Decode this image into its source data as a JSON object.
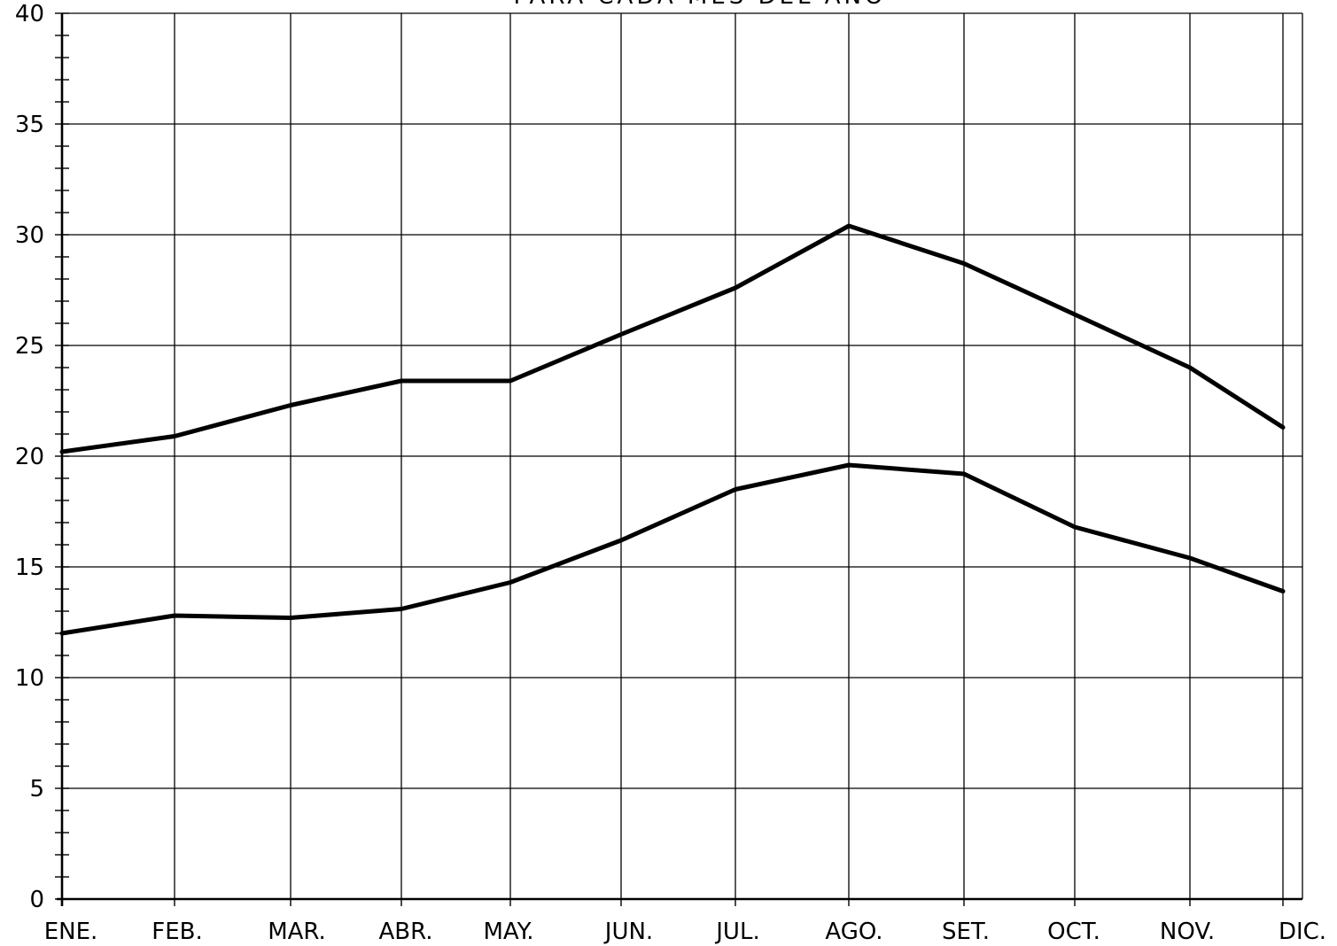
{
  "chart_data": {
    "type": "line",
    "title": "PARA CADA MES DEL AÑO",
    "xlabel": "",
    "ylabel": "",
    "categories": [
      "ENE.",
      "FEB.",
      "MAR.",
      "ABR.",
      "MAY.",
      "JUN.",
      "JUL.",
      "AGO.",
      "SET.",
      "OCT.",
      "NOV.",
      "DIC."
    ],
    "ylim": [
      0,
      40
    ],
    "yticks": [
      "0",
      "5",
      "10",
      "15",
      "20",
      "25",
      "30",
      "35",
      "40"
    ],
    "grid": true,
    "series": [
      {
        "values": [
          20.2,
          20.9,
          22.3,
          23.4,
          23.4,
          25.5,
          27.6,
          30.4,
          28.7,
          26.4,
          24.0,
          21.3
        ]
      },
      {
        "values": [
          12.0,
          12.8,
          12.7,
          13.1,
          14.3,
          16.2,
          18.5,
          19.6,
          19.2,
          16.8,
          15.4,
          13.9
        ]
      }
    ],
    "colors": {
      "line": "#000000",
      "grid": "#000000",
      "background": "#ffffff"
    }
  }
}
